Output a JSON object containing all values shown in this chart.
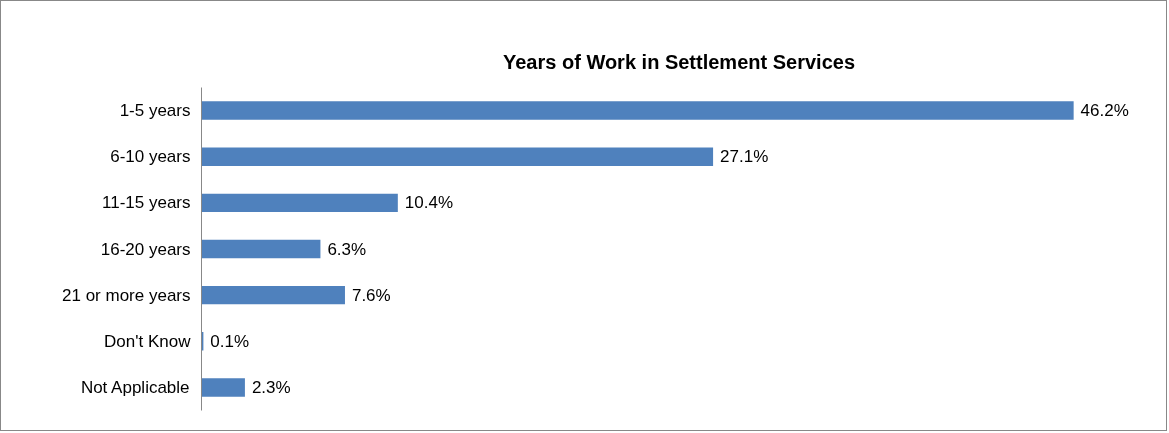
{
  "chart_data": {
    "type": "bar",
    "orientation": "horizontal",
    "title": "Years of Work in Settlement Services",
    "categories": [
      "1-5 years",
      "6-10 years",
      "11-15 years",
      "16-20 years",
      "21 or more years",
      "Don't Know",
      "Not Applicable"
    ],
    "values": [
      46.2,
      27.1,
      10.4,
      6.3,
      7.6,
      0.1,
      2.3
    ],
    "value_labels": [
      "46.2%",
      "27.1%",
      "10.4%",
      "6.3%",
      "7.6%",
      "0.1%",
      "2.3%"
    ],
    "color": "#4f81bd",
    "grid": false,
    "tick_labels": "y"
  }
}
